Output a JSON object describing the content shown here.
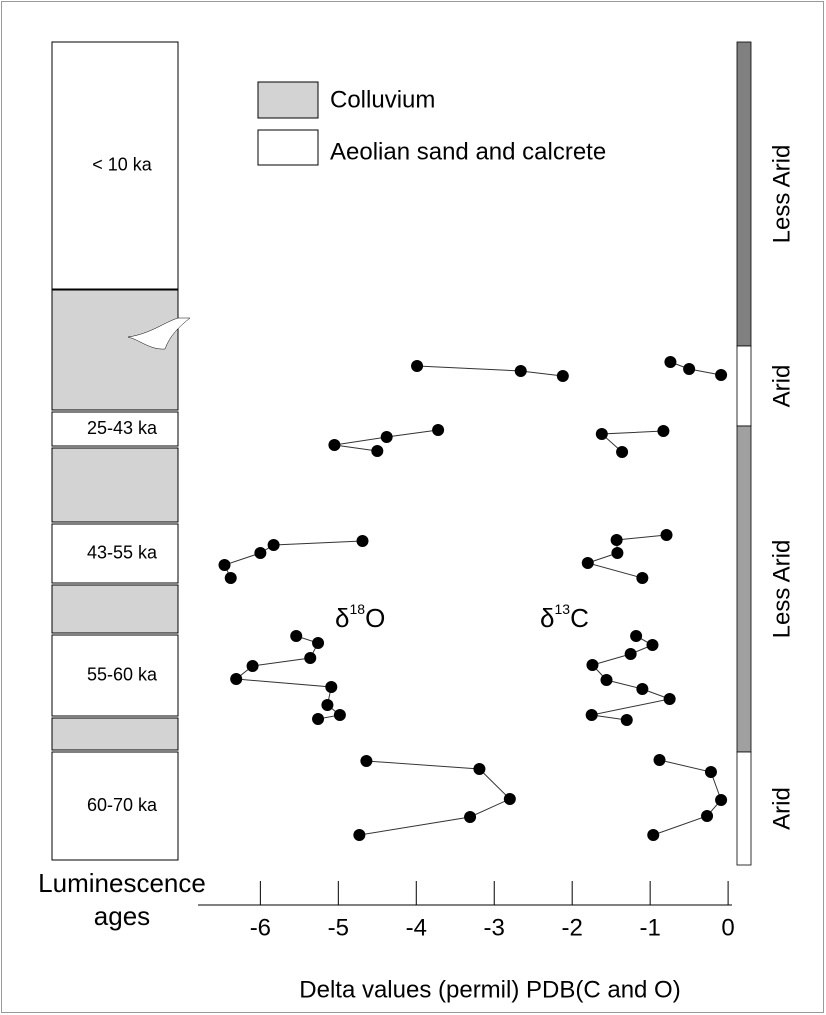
{
  "chart_data": {
    "type": "line",
    "xlabel": "Delta values (permil) PDB(C and O)",
    "xlim": [
      -6.8,
      0.05
    ],
    "xticks": [
      -6,
      -5,
      -4,
      -3,
      -2,
      -1,
      0
    ],
    "point_color": "#000000",
    "line_color": "#333333",
    "isotopes": [
      {
        "symbol": "δ",
        "mass": "18",
        "element": "O"
      },
      {
        "symbol": "δ",
        "mass": "13",
        "element": "C"
      }
    ],
    "series": [
      {
        "isotope": 0,
        "values": [
          -3.99,
          -2.66,
          -2.12
        ]
      },
      {
        "isotope": 1,
        "values": [
          -0.74,
          -0.5,
          -0.09
        ]
      },
      {
        "isotope": 0,
        "values": [
          -3.72,
          -4.38,
          -5.05,
          -4.5
        ]
      },
      {
        "isotope": 1,
        "values": [
          -0.83,
          -1.62,
          -1.36
        ]
      },
      {
        "isotope": 0,
        "values": [
          -4.69,
          -5.83,
          -6.0,
          -6.46,
          -6.38
        ]
      },
      {
        "isotope": 1,
        "values": [
          -0.79,
          -1.43,
          -1.42,
          -1.8,
          -1.1
        ]
      },
      {
        "isotope": 0,
        "values": [
          -5.54,
          -5.26,
          -5.36,
          -6.1,
          -6.31,
          -5.09,
          -5.14,
          -4.98,
          -5.26
        ]
      },
      {
        "isotope": 1,
        "values": [
          -1.18,
          -0.97,
          -1.25,
          -1.74,
          -1.56,
          -1.1,
          -0.75,
          -1.75,
          -1.3
        ]
      },
      {
        "isotope": 0,
        "values": [
          -4.64,
          -3.19,
          -2.8,
          -3.31,
          -4.73
        ]
      },
      {
        "isotope": 1,
        "values": [
          -0.88,
          -0.22,
          -0.09,
          -0.27,
          -0.96
        ]
      }
    ]
  },
  "legend": [
    {
      "label": "Colluvium",
      "color": "#d3d3d3"
    },
    {
      "label": "Aeolian sand and calcrete",
      "color": "#ffffff"
    }
  ],
  "column_title": [
    "Luminescence",
    "ages"
  ],
  "units": [
    {
      "label": "< 10 ka",
      "legend": 1
    },
    {
      "legend": 0
    },
    {
      "label": "25-43 ka",
      "legend": 1
    },
    {
      "legend": 0
    },
    {
      "label": "43-55 ka",
      "legend": 1
    },
    {
      "legend": 0
    },
    {
      "label": "55-60 ka",
      "legend": 1
    },
    {
      "legend": 0
    },
    {
      "label": "60-70 ka",
      "legend": 1
    }
  ],
  "climate": [
    {
      "label": "Less Arid",
      "color": "#808080"
    },
    {
      "label": "Arid",
      "color": "#ffffff"
    },
    {
      "label": "Less Arid",
      "color": "#a0a0a0"
    },
    {
      "label": "Arid",
      "color": "#ffffff"
    }
  ]
}
